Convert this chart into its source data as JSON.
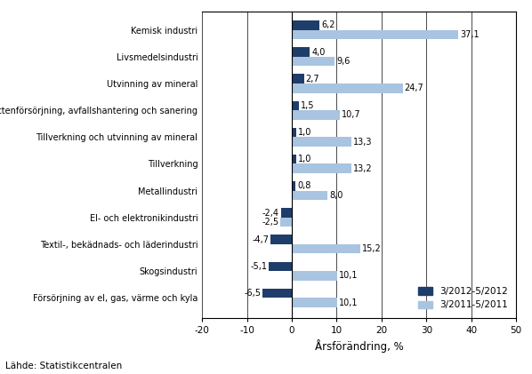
{
  "categories": [
    "Försörjning av el, gas, värme och kyla",
    "Skogsindustri",
    "Textil-, bekädnads- och läderindustri",
    "El- och elektronikindustri",
    "Metallindustri",
    "Tillverkning",
    "Tillverkning och utvinning av mineral",
    "Vattenförsörjning, avfallshantering och sanering",
    "Utvinning av mineral",
    "Livsmedelsindustri",
    "Kemisk industri"
  ],
  "values_2012": [
    -6.5,
    -5.1,
    -4.7,
    -2.4,
    0.8,
    1.0,
    1.0,
    1.5,
    2.7,
    4.0,
    6.2
  ],
  "values_2011": [
    10.1,
    10.1,
    15.2,
    -2.5,
    8.0,
    13.2,
    13.3,
    10.7,
    24.7,
    9.6,
    37.1
  ],
  "labels_2012": [
    "-6,5",
    "-5,1",
    "-4,7",
    "-2,4",
    "0,8",
    "1,0",
    "1,0",
    "1,5",
    "2,7",
    "4,0",
    "6,2"
  ],
  "labels_2011": [
    "10,1",
    "10,1",
    "15,2",
    "-2,5",
    "8,0",
    "13,2",
    "13,3",
    "10,7",
    "24,7",
    "9,6",
    "37,1"
  ],
  "color_2012": "#1F3D6B",
  "color_2011": "#A8C4E0",
  "legend_2012": "3/2012-5/2012",
  "legend_2011": "3/2011-5/2011",
  "xlabel": "Årsförändring, %",
  "xlim": [
    -20,
    50
  ],
  "xticks": [
    -20,
    -10,
    0,
    10,
    20,
    30,
    40,
    50
  ],
  "source": "Lähde: Statistikcentralen",
  "bar_height": 0.35
}
